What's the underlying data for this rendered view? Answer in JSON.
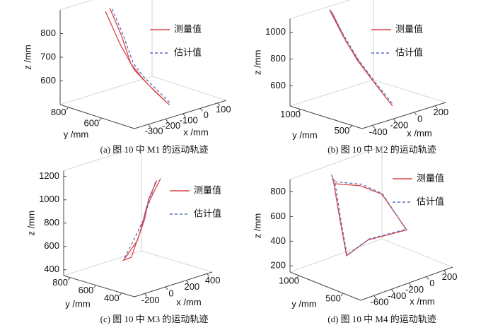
{
  "chart_data": [
    {
      "type": "line3d",
      "caption": "(a)  图 10 中 M1 的运动轨迹",
      "xlabel": "x /mm",
      "ylabel": "y /mm",
      "zlabel": "z /mm",
      "xlim": [
        -380,
        150
      ],
      "ylim": [
        400,
        850
      ],
      "zlim": [
        500,
        900
      ],
      "xticks": [
        -300,
        -200,
        -100,
        0,
        100
      ],
      "yticks": [
        600,
        800
      ],
      "zticks": [
        600,
        700,
        800
      ],
      "legend": "upper right",
      "series": [
        {
          "name": "测量值",
          "color": "#d9454a",
          "linestyle": "solid",
          "x": [
            -189,
            -170,
            -163,
            -140,
            -120,
            -83,
            -110,
            -150,
            -175,
            -195
          ],
          "y": [
            750,
            700,
            650,
            615,
            580,
            500,
            560,
            640,
            700,
            770
          ],
          "z": [
            887,
            780,
            670,
            620,
            580,
            511,
            560,
            640,
            740,
            870
          ]
        },
        {
          "name": "估计值",
          "color": "#5a6fc1",
          "linestyle": "dashed",
          "x": [
            -175,
            -160,
            -150,
            -130,
            -105,
            -75
          ],
          "y": [
            750,
            700,
            650,
            615,
            580,
            500
          ],
          "z": [
            880,
            780,
            670,
            620,
            580,
            515
          ]
        }
      ]
    },
    {
      "type": "line3d",
      "caption": "(b)  图 10 中 M2 的运动轨迹",
      "xlabel": "x /mm",
      "ylabel": "y /mm",
      "zlabel": "z /mm",
      "xlim": [
        -500,
        300
      ],
      "ylim": [
        400,
        1100
      ],
      "zlim": [
        450,
        1100
      ],
      "xticks": [
        -400,
        -200,
        0,
        200
      ],
      "yticks": [
        500,
        1000
      ],
      "zticks": [
        600,
        800,
        1000
      ],
      "legend": "upper right",
      "series": [
        {
          "name": "测量值",
          "color": "#d9454a",
          "linestyle": "solid",
          "x": [
            -172,
            -140,
            -100,
            -60,
            -12,
            -40,
            -90,
            -130,
            -165
          ],
          "y": [
            1050,
            950,
            850,
            720,
            600,
            700,
            820,
            930,
            1030
          ],
          "z": [
            1100,
            920,
            752,
            600,
            452,
            560,
            720,
            880,
            1080
          ]
        },
        {
          "name": "估计值",
          "color": "#5a6fc1",
          "linestyle": "dashed",
          "x": [
            -160,
            -128,
            -88,
            -50,
            -5
          ],
          "y": [
            1050,
            950,
            850,
            720,
            600
          ],
          "z": [
            1090,
            915,
            750,
            600,
            460
          ]
        }
      ]
    },
    {
      "type": "line3d",
      "caption": "(c)  图 10 中 M3 的运动轨迹",
      "xlabel": "x /mm",
      "ylabel": "y /mm",
      "zlabel": "z /mm",
      "xlim": [
        -300,
        450
      ],
      "ylim": [
        300,
        850
      ],
      "zlim": [
        350,
        1250
      ],
      "xticks": [
        -200,
        0,
        200,
        400
      ],
      "yticks": [
        400,
        600,
        800
      ],
      "zticks": [
        400,
        600,
        800,
        1000,
        1200
      ],
      "legend": "upper right",
      "series": [
        {
          "name": "测量值",
          "color": "#d9454a",
          "linestyle": "solid",
          "x": [
            165,
            110,
            48,
            -50,
            -157,
            -120,
            -10,
            80,
            175
          ],
          "y": [
            500,
            520,
            500,
            480,
            500,
            470,
            490,
            510,
            480
          ],
          "z": [
            1151,
            1000,
            853,
            700,
            557,
            580,
            760,
            950,
            1170
          ]
        },
        {
          "name": "估计值",
          "color": "#5a6fc1",
          "linestyle": "dashed",
          "x": [
            150,
            95,
            35,
            -60,
            -150
          ],
          "y": [
            500,
            500,
            500,
            500,
            500
          ],
          "z": [
            1140,
            995,
            850,
            700,
            570
          ]
        }
      ]
    },
    {
      "type": "line3d",
      "caption": "(d)  图 10 中 M4 的运动轨迹",
      "xlabel": "x /mm",
      "ylabel": "y /mm",
      "zlabel": "z /mm",
      "xlim": [
        -750,
        300
      ],
      "ylim": [
        300,
        1100
      ],
      "zlim": [
        150,
        900
      ],
      "xticks": [
        -600,
        -400,
        -200,
        0,
        200
      ],
      "yticks": [
        500,
        1000
      ],
      "zticks": [
        200,
        400,
        600,
        800
      ],
      "legend": "upper right",
      "series": [
        {
          "name": "测量值",
          "color": "#d9454a",
          "linestyle": "solid",
          "x": [
            -451,
            -200,
            -4,
            179,
            -162,
            -306,
            -383,
            -451,
            -420
          ],
          "y": [
            900,
            850,
            800,
            700,
            800,
            900,
            900,
            900,
            950
          ],
          "z": [
            847,
            780,
            676,
            368,
            345,
            225,
            543,
            847,
            880
          ]
        },
        {
          "name": "估计值",
          "color": "#5a6fc1",
          "linestyle": "dashed",
          "x": [
            -440,
            -190,
            0,
            170,
            -150,
            -300,
            -375,
            -440,
            -430
          ],
          "y": [
            900,
            850,
            800,
            700,
            800,
            900,
            900,
            900,
            950
          ],
          "z": [
            860,
            790,
            680,
            375,
            350,
            230,
            550,
            860,
            900
          ]
        }
      ]
    }
  ]
}
